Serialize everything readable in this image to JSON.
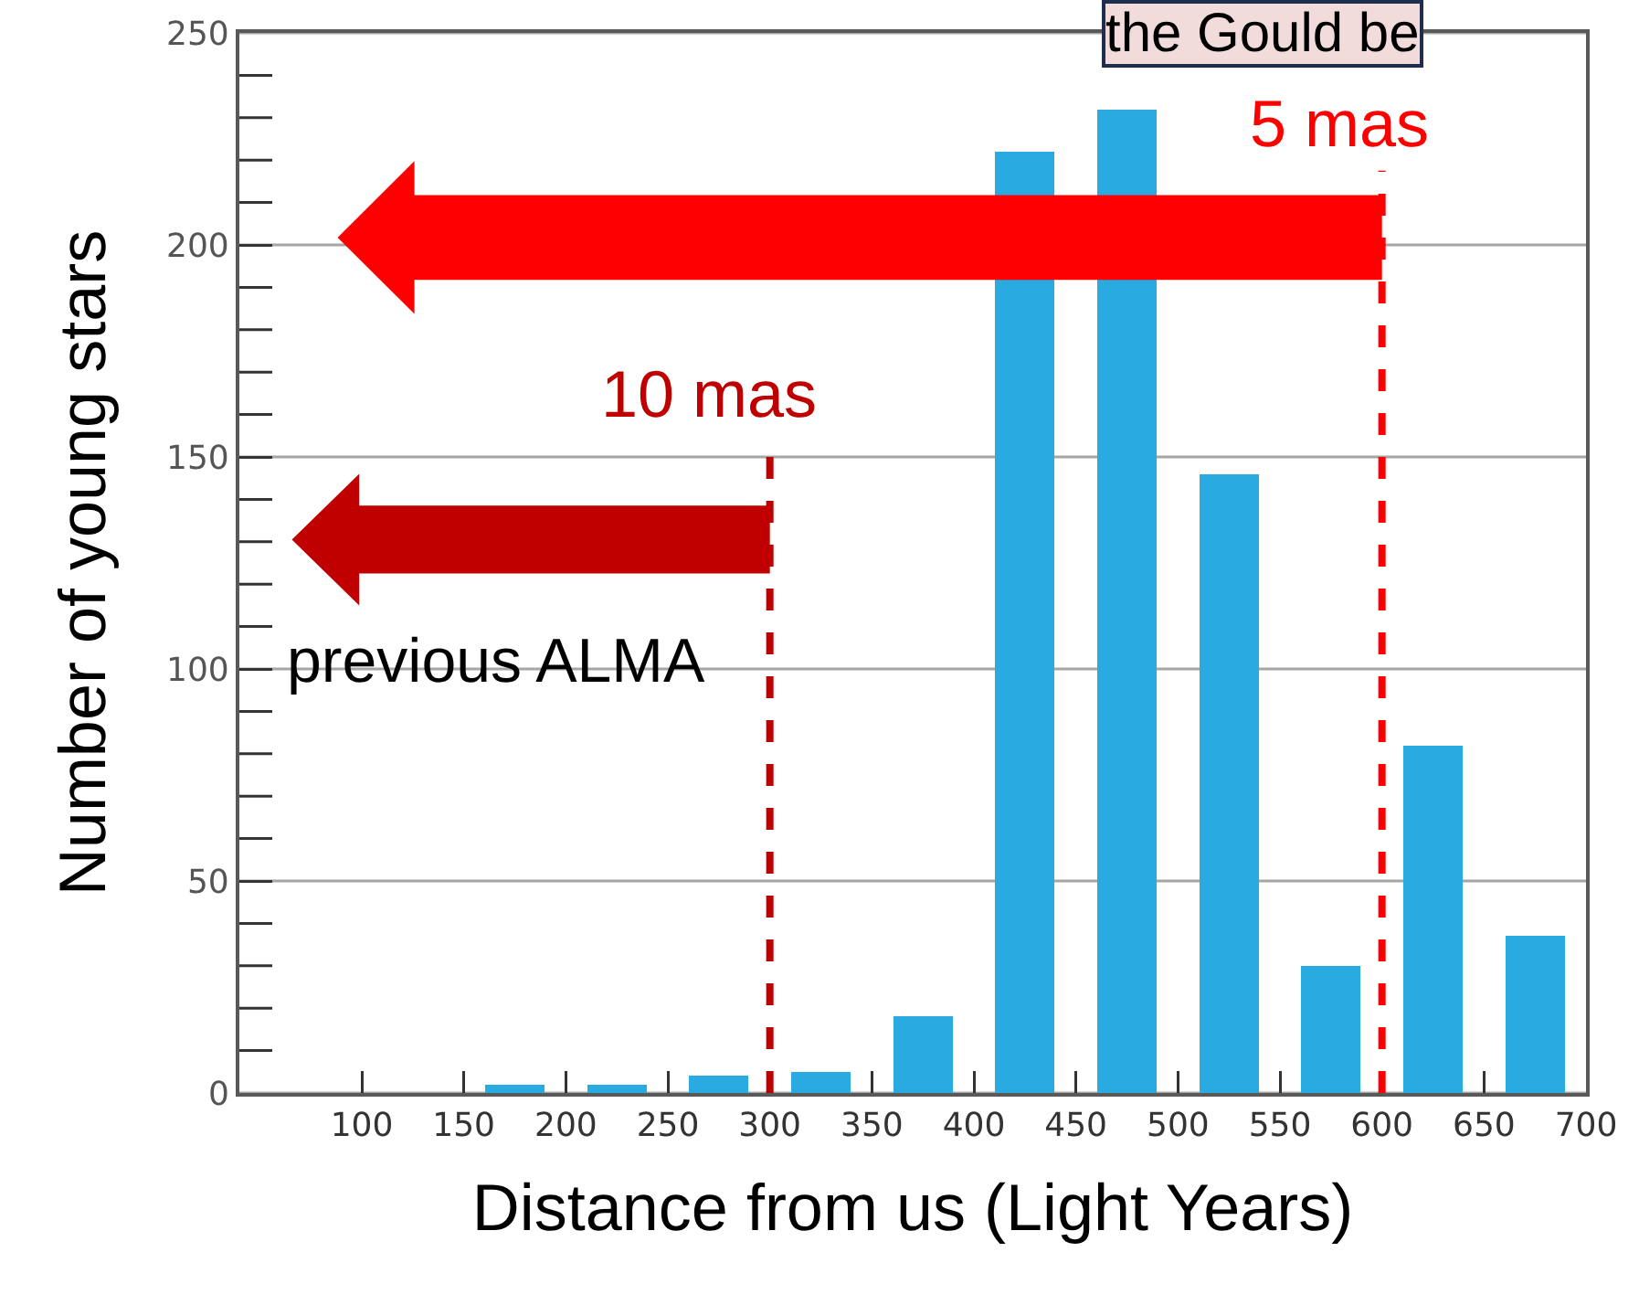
{
  "chart_data": {
    "type": "histogram",
    "xlabel": "Distance from us (Light Years)",
    "ylabel": "Number of young stars",
    "bins": [
      100,
      150,
      200,
      250,
      300,
      350,
      400,
      450,
      500,
      550,
      600,
      650,
      700
    ],
    "values": [
      0,
      2,
      2,
      4,
      5,
      18,
      222,
      232,
      146,
      30,
      82,
      37
    ],
    "color": "#29abe2",
    "xlim": [
      40,
      700
    ],
    "xticks": [
      100,
      150,
      200,
      250,
      300,
      350,
      400,
      450,
      500,
      550,
      600,
      650,
      700
    ],
    "ylim": [
      0,
      250
    ],
    "yticks": [
      0,
      50,
      100,
      150,
      200,
      250
    ],
    "grid": "y",
    "ref_lines": [
      {
        "axis": "x",
        "value": 300,
        "label": "10 mas",
        "color": "#c00000",
        "line_style": "dashed"
      },
      {
        "axis": "x",
        "value": 600,
        "label": "5 mas",
        "color": "#ff0000",
        "line_style": "dashed"
      }
    ],
    "annotations": [
      "previous ALMA",
      "the Gould be"
    ]
  }
}
